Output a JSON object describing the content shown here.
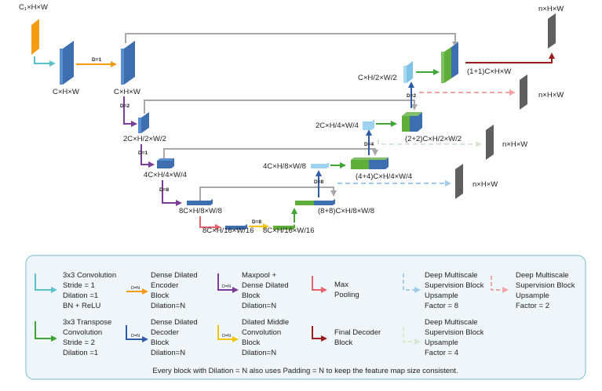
{
  "colors": {
    "input": "#f39c12",
    "encoder_block": "#4a7fc1",
    "encoder_block_light": "#7ec3e6",
    "skip_gray": "#a8a8a8",
    "conv3x3": "#5bc2c9",
    "dense_encoder": "#f39c12",
    "maxpool_dense": "#7d3c98",
    "maxpool": "#e8636a",
    "transpose": "#3fa535",
    "dense_decoder": "#2f5ea8",
    "dilated_middle": "#f1c40f",
    "final_decoder": "#9b1c1c",
    "sup8": "#9ecbee",
    "sup2": "#f4a4a4",
    "sup4": "#d6e8cf",
    "output": "#5f5f5f",
    "legend_bg": "#eef6fa",
    "legend_border": "#8fc6d9"
  },
  "labels": {
    "input": "C₁×H×W",
    "enc0": "C×H×W",
    "enc1": "C×H×W",
    "enc2": "2C×H/2×W/2",
    "enc3": "4C×H/4×W/4",
    "enc4": "8C×H/8×W/8",
    "mid1": "8C×H/16×W/16",
    "mid2": "8C×H/16×W/16",
    "dec8_concat": "(8+8)C×H/8×W/8",
    "dec4_up": "4C×H/8×W/8",
    "dec4_concat": "(4+4)C×H/4×W/4",
    "dec2_up": "2C×H/4×W/4",
    "dec2_concat": "(2+2)C×H/2×W/2",
    "dec1_up": "C×H/2×W/2",
    "dec1_concat": "(1+1)C×H×W",
    "out_final": "n×H×W",
    "out_sup2": "n×H×W",
    "out_sup4": "n×H×W",
    "out_sup8": "n×H×W"
  },
  "dilations": {
    "d1": "D=1",
    "d2": "D=2",
    "d1b": "D=1",
    "d8": "D=8",
    "dmid": "D=8",
    "dec8": "D=8",
    "dec4": "D=4",
    "dec2": "D=2"
  },
  "legend": {
    "conv3x3": [
      "3x3 Convolution",
      "Stride = 1",
      "Dilation =1",
      "BN + ReLU"
    ],
    "dense_encoder": [
      "Dense Dilated",
      "Encoder",
      "Block",
      "Dilation=N"
    ],
    "maxpool_dense": [
      "Maxpool +",
      "Dense Dilated",
      "Block",
      "Dilation=N"
    ],
    "maxpool": [
      "Max",
      "Pooling"
    ],
    "sup8": [
      "Deep Multiscale",
      "Supervision Block",
      "Upsample",
      "Factor = 8"
    ],
    "sup2": [
      "Deep Multiscale",
      "Supervision Block",
      "Upsample",
      "Factor = 2"
    ],
    "transpose": [
      "3x3 Transpose",
      "Convolution",
      "Stride = 2",
      "Dilation =1"
    ],
    "dense_decoder": [
      "Dense Dilated",
      "Decoder",
      "Block",
      "Dilation=N"
    ],
    "dilated_middle": [
      "Dilated Middle",
      "Convolution",
      "Block",
      "Dilation=N"
    ],
    "final_decoder": [
      "Final Decoder",
      "Block"
    ],
    "sup4": [
      "Deep Multiscale",
      "Supervision Block",
      "Upsample",
      "Factor = 4"
    ],
    "dn_tag": "D=N",
    "caption": "Every block with Dilation = N also uses Padding = N to keep the feature map size consistent."
  }
}
